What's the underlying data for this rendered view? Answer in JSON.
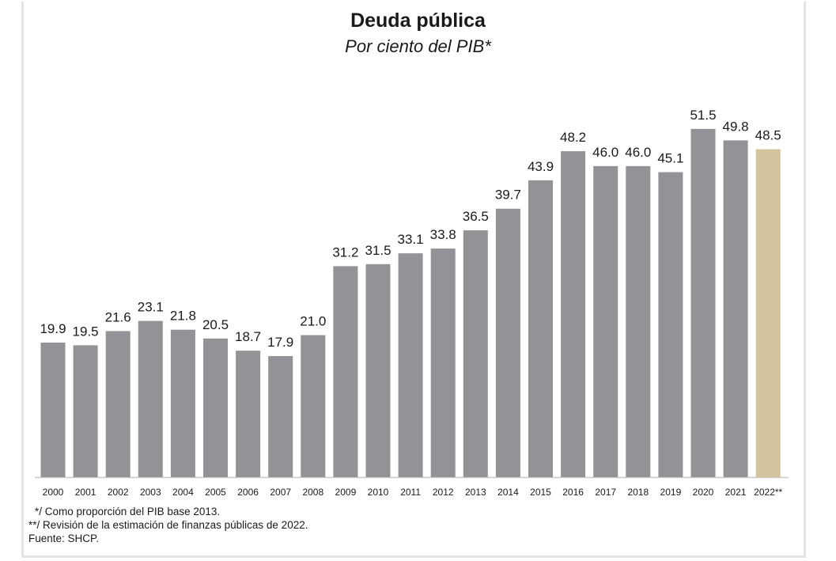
{
  "chart_data": {
    "type": "bar",
    "title": "Deuda pública",
    "subtitle": "Por ciento del PIB*",
    "categories": [
      "2000",
      "2001",
      "2002",
      "2003",
      "2004",
      "2005",
      "2006",
      "2007",
      "2008",
      "2009",
      "2010",
      "2011",
      "2012",
      "2013",
      "2014",
      "2015",
      "2016",
      "2017",
      "2018",
      "2019",
      "2020",
      "2021",
      "2022**"
    ],
    "values": [
      19.9,
      19.5,
      21.6,
      23.1,
      21.8,
      20.5,
      18.7,
      17.9,
      21.0,
      31.2,
      31.5,
      33.1,
      33.8,
      36.5,
      39.7,
      43.9,
      48.2,
      46.0,
      46.0,
      45.1,
      51.5,
      49.8,
      48.5
    ],
    "data_labels": [
      "19.9",
      "19.5",
      "21.6",
      "23.1",
      "21.8",
      "20.5",
      "18.7",
      "17.9",
      "21.0",
      "31.2",
      "31.5",
      "33.1",
      "33.8",
      "36.5",
      "39.7",
      "43.9",
      "48.2",
      "46.0",
      "46.0",
      "45.1",
      "51.5",
      "49.8",
      "48.5"
    ],
    "highlight_index": 22,
    "xlabel": "",
    "ylabel": "",
    "ylim": [
      0,
      55
    ],
    "grid": false
  },
  "colors": {
    "bar": "#939296",
    "highlight": "#d3c39f",
    "axis": "#c8c8c8",
    "text": "#1a1a1a"
  },
  "notes": {
    "note1": "*/ Como proporción del PIB base 2013.",
    "note2": "**/ Revisión de la estimación de finanzas públicas de 2022.",
    "source": "Fuente: SHCP."
  }
}
